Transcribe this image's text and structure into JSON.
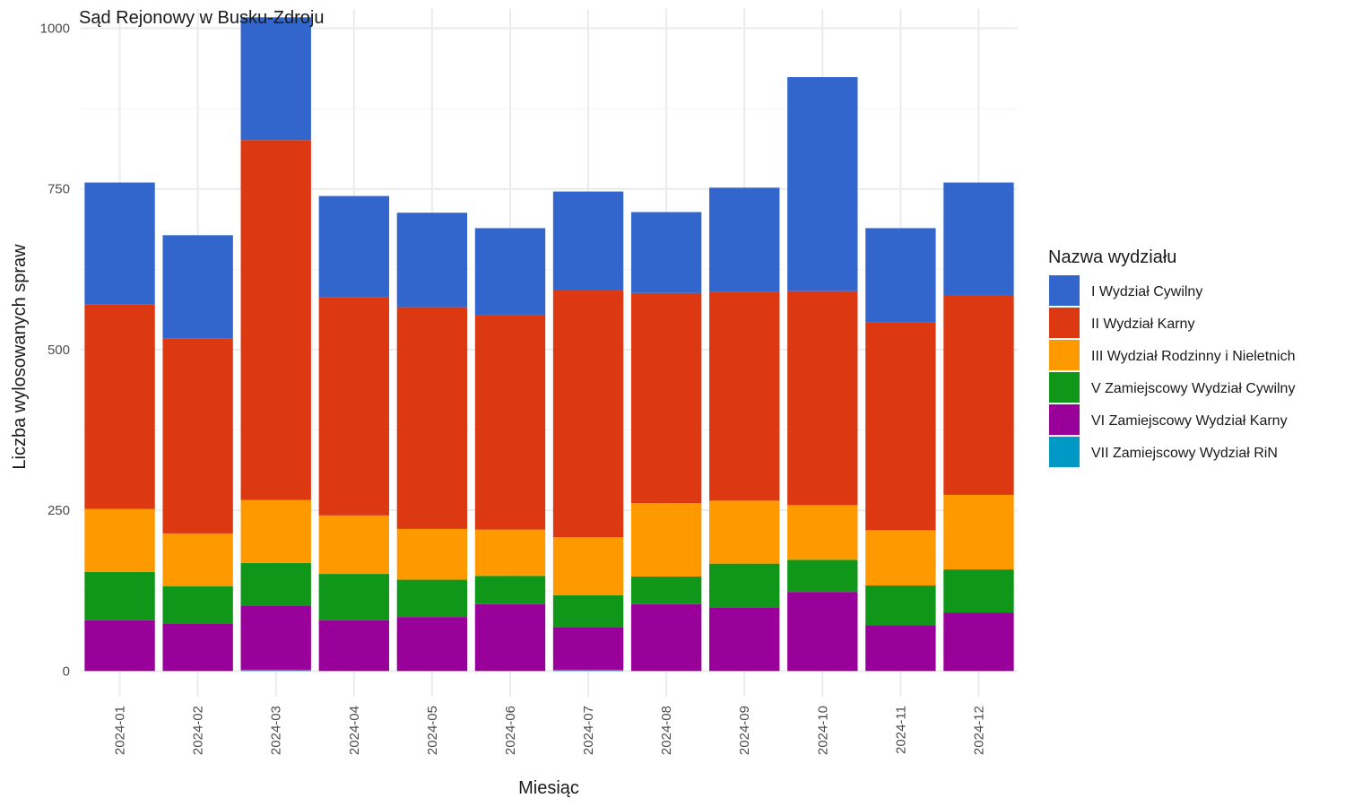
{
  "chart_data": {
    "type": "bar",
    "stacked": true,
    "title": "Sąd Rejonowy w Busku-Zdroju",
    "xlabel": "Miesiąc",
    "ylabel": "Liczba wylosowanych spraw",
    "ylim": [
      -40,
      1030
    ],
    "yticks": [
      0,
      250,
      500,
      750,
      1000
    ],
    "grid": true,
    "legend": {
      "title": "Nazwa wydziału",
      "position": "right"
    },
    "categories": [
      "2024-01",
      "2024-02",
      "2024-03",
      "2024-04",
      "2024-05",
      "2024-06",
      "2024-07",
      "2024-08",
      "2024-09",
      "2024-10",
      "2024-11",
      "2024-12"
    ],
    "series": [
      {
        "name": "I Wydział Cywilny",
        "color": "#3366CC",
        "values": [
          190,
          161,
          191,
          158,
          147,
          136,
          154,
          126,
          162,
          333,
          146,
          175
        ]
      },
      {
        "name": "II Wydział Karny",
        "color": "#DC3912",
        "values": [
          318,
          303,
          560,
          339,
          345,
          333,
          384,
          327,
          325,
          333,
          324,
          311
        ]
      },
      {
        "name": "III Wydział Rodzinny i Nieletnich",
        "color": "#FF9900",
        "values": [
          98,
          82,
          98,
          91,
          79,
          72,
          90,
          114,
          98,
          85,
          86,
          116
        ]
      },
      {
        "name": "V Zamiejscowy Wydział Cywilny",
        "color": "#109618",
        "values": [
          75,
          58,
          66,
          72,
          58,
          44,
          50,
          43,
          68,
          50,
          62,
          67
        ]
      },
      {
        "name": "VI Zamiejscowy Wydział Karny",
        "color": "#990099",
        "values": [
          79,
          74,
          100,
          79,
          84,
          104,
          66,
          104,
          99,
          123,
          71,
          91
        ]
      },
      {
        "name": "VII Zamiejscowy Wydział RiN",
        "color": "#0099C6",
        "values": [
          0,
          0,
          2,
          0,
          0,
          0,
          2,
          0,
          0,
          0,
          0,
          0
        ]
      }
    ]
  }
}
